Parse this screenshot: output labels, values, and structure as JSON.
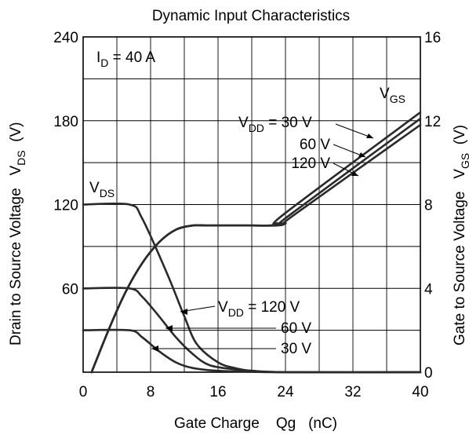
{
  "chart_data": {
    "type": "line",
    "title": "Dynamic Input Characteristics",
    "xlabel": "Gate Charge    Qg   (nC)",
    "ylabel_left": "Drain to Source Voltage   V",
    "ylabel_left_sub": "DS",
    "ylabel_left_unit": "(V)",
    "ylabel_right": "Gate to Source Voltage   V",
    "ylabel_right_sub": "GS",
    "ylabel_right_unit": "(V)",
    "xlim": [
      0,
      40
    ],
    "ylim_left": [
      0,
      240
    ],
    "ylim_right": [
      0,
      16
    ],
    "x_ticks": [
      "0",
      "8",
      "16",
      "24",
      "32",
      "40"
    ],
    "y_ticks_left": [
      "60",
      "120",
      "180",
      "240"
    ],
    "y_ticks_right": [
      "0",
      "4",
      "8",
      "12",
      "16"
    ],
    "grid": true,
    "condition": {
      "main": "I",
      "sub": "D",
      "rest": " = 40 A"
    },
    "annotations": {
      "vds_label": {
        "main": "V",
        "sub": "DS"
      },
      "vgs_label": {
        "main": "V",
        "sub": "GS"
      },
      "vdd_gs_top": {
        "main": "V",
        "sub": "DD",
        "rest": " = 30 V"
      },
      "vdd_gs_mid": "60 V",
      "vdd_gs_bot": "120 V",
      "vdd_ds_top": {
        "main": "V",
        "sub": "DD",
        "rest": " = 120 V"
      },
      "vdd_ds_mid": "60 V",
      "vdd_ds_bot": "30 V"
    },
    "series": [
      {
        "axis": "left",
        "points": [
          [
            0,
            120
          ],
          [
            5.5,
            120
          ],
          [
            7,
            110
          ],
          [
            10,
            70
          ],
          [
            12,
            40
          ],
          [
            13.5,
            20
          ],
          [
            16,
            7
          ],
          [
            18,
            3
          ],
          [
            20,
            1
          ],
          [
            24,
            0
          ],
          [
            40,
            0
          ]
        ]
      },
      {
        "axis": "left",
        "points": [
          [
            0,
            60
          ],
          [
            5.5,
            60
          ],
          [
            7,
            54
          ],
          [
            9,
            40
          ],
          [
            11,
            25
          ],
          [
            13,
            13
          ],
          [
            15,
            5
          ],
          [
            18,
            2
          ],
          [
            20,
            1
          ],
          [
            24,
            0
          ],
          [
            40,
            0
          ]
        ]
      },
      {
        "axis": "left",
        "points": [
          [
            0,
            30
          ],
          [
            5.5,
            30
          ],
          [
            7,
            25
          ],
          [
            9,
            15
          ],
          [
            11,
            7
          ],
          [
            13,
            3
          ],
          [
            16,
            1
          ],
          [
            20,
            0.3
          ],
          [
            24,
            0
          ],
          [
            40,
            0
          ]
        ]
      },
      {
        "axis": "right",
        "points": [
          [
            1,
            0
          ],
          [
            3,
            2
          ],
          [
            5,
            3.8
          ],
          [
            7,
            5.2
          ],
          [
            9,
            6.2
          ],
          [
            11,
            6.8
          ],
          [
            13,
            7.0
          ],
          [
            15,
            7.0
          ],
          [
            20,
            7.0
          ],
          [
            22,
            7.0
          ],
          [
            23,
            7.1
          ],
          [
            24,
            7.6
          ],
          [
            40,
            12.4
          ]
        ]
      },
      {
        "axis": "right",
        "points": [
          [
            1,
            0
          ],
          [
            3,
            2
          ],
          [
            5,
            3.8
          ],
          [
            7,
            5.2
          ],
          [
            9,
            6.2
          ],
          [
            11,
            6.8
          ],
          [
            13,
            7.0
          ],
          [
            15,
            7.0
          ],
          [
            20,
            7.0
          ],
          [
            22.5,
            7.0
          ],
          [
            23.5,
            7.1
          ],
          [
            24.5,
            7.5
          ],
          [
            40,
            12.1
          ]
        ]
      },
      {
        "axis": "right",
        "points": [
          [
            1,
            0
          ],
          [
            3,
            2
          ],
          [
            5,
            3.8
          ],
          [
            7,
            5.2
          ],
          [
            9,
            6.2
          ],
          [
            11,
            6.8
          ],
          [
            13,
            7.0
          ],
          [
            15,
            7.0
          ],
          [
            20,
            7.0
          ],
          [
            23,
            7.0
          ],
          [
            24,
            7.1
          ],
          [
            25,
            7.5
          ],
          [
            40,
            11.8
          ]
        ]
      }
    ]
  }
}
